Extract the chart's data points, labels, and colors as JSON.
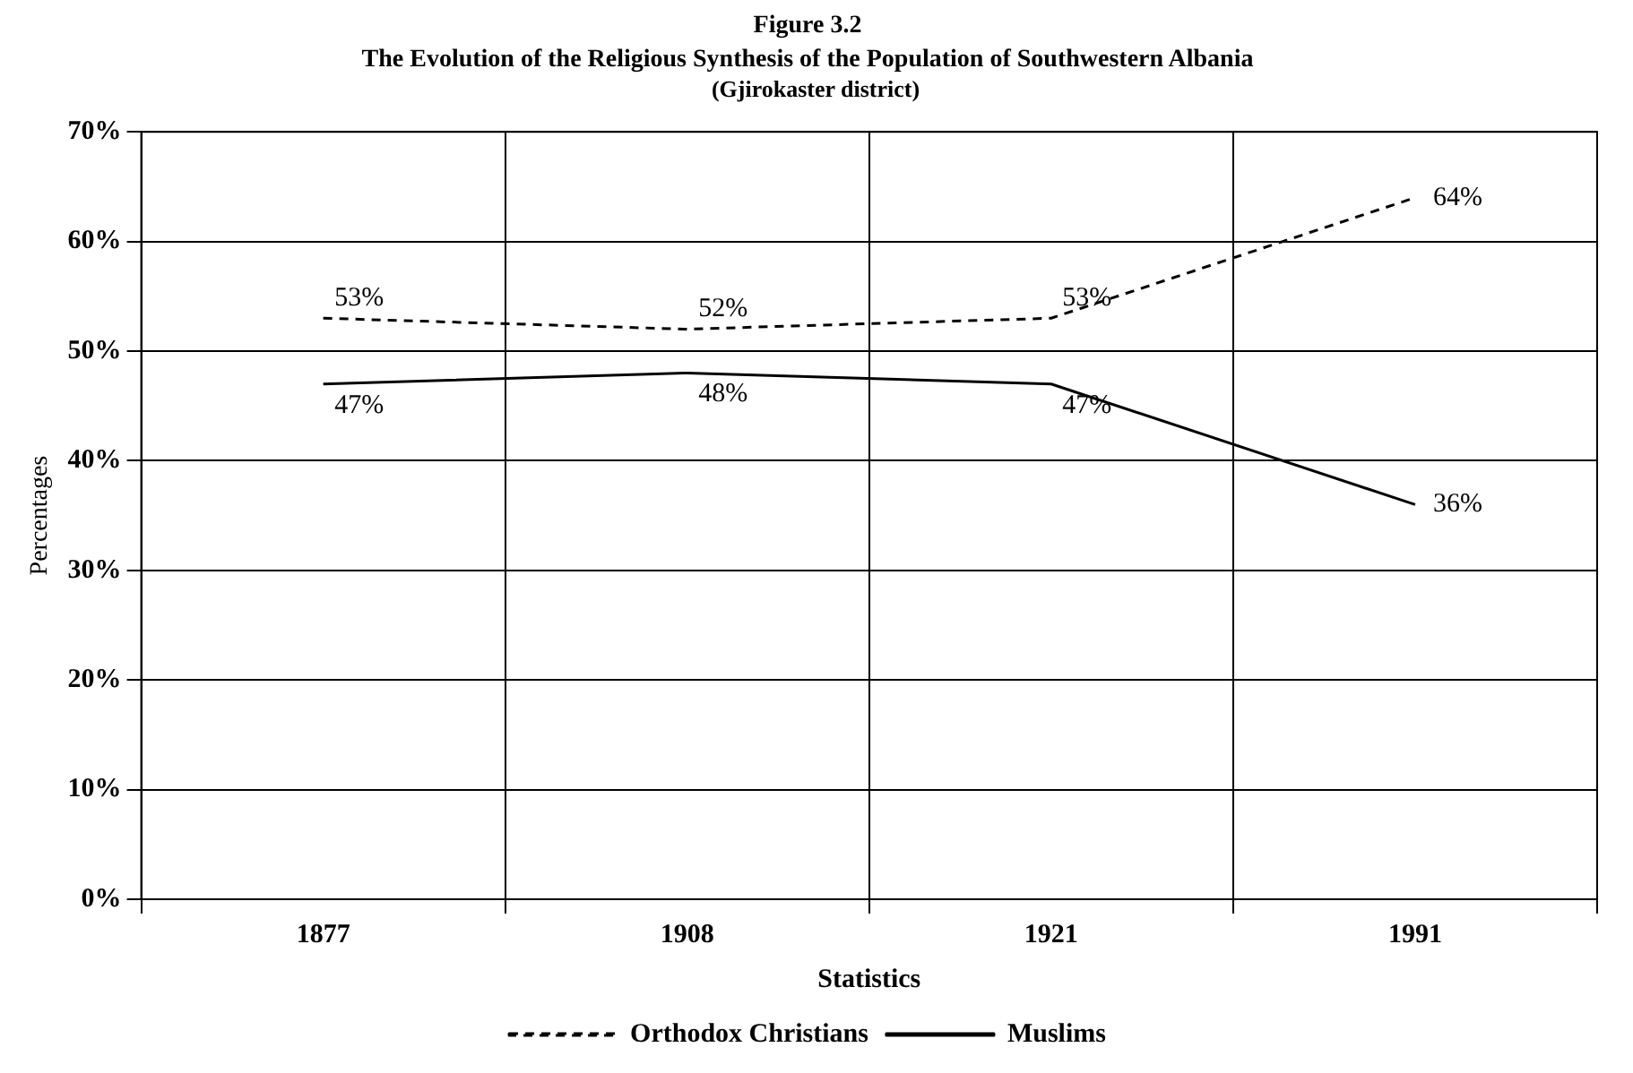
{
  "chart_data": {
    "type": "line",
    "title": "Figure 3.2",
    "subtitle": "The Evolution of the Religious Synthesis of the Population of Southwestern Albania",
    "annotations": [
      "(Gjirokaster district)"
    ],
    "xlabel": "Statistics",
    "ylabel": "Percentages",
    "categories": [
      "1877",
      "1908",
      "1921",
      "1991"
    ],
    "series": [
      {
        "name": "Orthodox Christians",
        "color": "#000000",
        "line_style": "dashed",
        "values": [
          53,
          52,
          53,
          64
        ],
        "value_labels": [
          "53%",
          "52%",
          "53%",
          "64%"
        ]
      },
      {
        "name": "Muslims",
        "color": "#000000",
        "line_style": "solid",
        "values": [
          47,
          48,
          47,
          36
        ],
        "value_labels": [
          "47%",
          "48%",
          "47%",
          "36%"
        ]
      }
    ],
    "ylim": [
      0,
      70
    ],
    "yticks": [
      {
        "value": 0,
        "label": "0%"
      },
      {
        "value": 10,
        "label": "10%"
      },
      {
        "value": 20,
        "label": "20%"
      },
      {
        "value": 30,
        "label": "30%"
      },
      {
        "value": 40,
        "label": "40%"
      },
      {
        "value": 50,
        "label": "50%"
      },
      {
        "value": 60,
        "label": "60%"
      },
      {
        "value": 70,
        "label": "70%"
      }
    ],
    "grid": true,
    "legend": "bottom",
    "marker": "none"
  }
}
